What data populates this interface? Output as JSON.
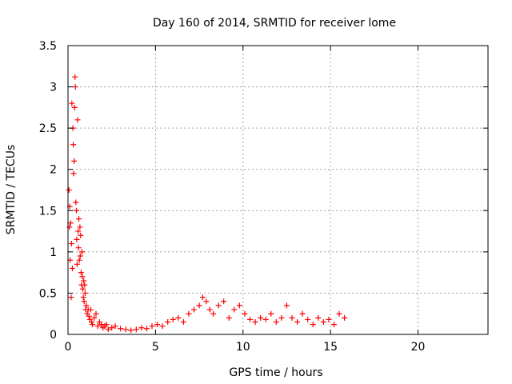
{
  "chart_data": {
    "type": "scatter",
    "title": "Day 160 of 2014, SRMTID for receiver lome",
    "xlabel": "GPS time / hours",
    "ylabel": "SRMTID / TECUs",
    "xlim": [
      0,
      24
    ],
    "ylim": [
      0,
      3.5
    ],
    "x_ticks": [
      "0",
      "5",
      "10",
      "15",
      "20"
    ],
    "y_ticks": [
      "0",
      "0.5",
      "1",
      "1.5",
      "2",
      "2.5",
      "3",
      "3.5"
    ],
    "grid": true,
    "marker": "+",
    "color": "#ff0000",
    "series": [
      {
        "x": [
          0.05,
          0.08,
          0.1,
          0.12,
          0.15,
          0.18,
          0.2,
          0.22,
          0.25,
          0.28,
          0.3,
          0.32,
          0.35,
          0.38,
          0.4,
          0.42,
          0.45,
          0.48,
          0.5,
          0.52,
          0.55,
          0.58,
          0.6,
          0.62,
          0.65,
          0.68,
          0.7,
          0.72,
          0.75,
          0.78,
          0.8,
          0.82,
          0.85,
          0.88,
          0.9,
          0.92,
          0.95,
          0.98,
          1.0,
          1.05,
          1.1,
          1.15,
          1.2,
          1.25,
          1.3,
          1.35,
          1.4,
          1.5,
          1.6,
          1.7,
          1.8,
          1.9,
          2.0,
          2.1,
          2.2,
          2.3,
          2.5,
          2.7,
          3.0,
          3.3,
          3.6,
          3.9,
          4.2,
          4.5,
          4.8,
          5.1,
          5.4,
          5.7,
          6.0,
          6.3,
          6.6,
          6.9,
          7.2,
          7.5,
          7.7,
          7.9,
          8.1,
          8.3,
          8.6,
          8.9,
          9.2,
          9.5,
          9.8,
          10.1,
          10.4,
          10.7,
          11.0,
          11.3,
          11.6,
          11.9,
          12.2,
          12.5,
          12.8,
          13.1,
          13.4,
          13.7,
          14.0,
          14.3,
          14.6,
          14.9,
          15.2,
          15.5,
          15.8
        ],
        "y": [
          1.75,
          1.3,
          1.55,
          0.9,
          1.35,
          0.45,
          1.1,
          2.8,
          0.8,
          2.5,
          2.3,
          1.95,
          2.1,
          2.75,
          3.12,
          3.0,
          1.6,
          1.5,
          1.15,
          0.85,
          2.6,
          1.25,
          1.05,
          1.4,
          0.9,
          1.3,
          0.95,
          1.2,
          0.75,
          0.6,
          1.0,
          0.7,
          0.55,
          0.45,
          0.65,
          0.4,
          0.6,
          0.5,
          0.3,
          0.35,
          0.25,
          0.3,
          0.22,
          0.18,
          0.3,
          0.15,
          0.12,
          0.2,
          0.25,
          0.1,
          0.15,
          0.12,
          0.08,
          0.1,
          0.12,
          0.06,
          0.08,
          0.1,
          0.07,
          0.06,
          0.05,
          0.06,
          0.08,
          0.07,
          0.1,
          0.12,
          0.1,
          0.15,
          0.18,
          0.2,
          0.15,
          0.25,
          0.3,
          0.35,
          0.45,
          0.4,
          0.3,
          0.25,
          0.35,
          0.4,
          0.2,
          0.3,
          0.35,
          0.25,
          0.18,
          0.15,
          0.2,
          0.18,
          0.25,
          0.15,
          0.2,
          0.35,
          0.2,
          0.15,
          0.25,
          0.18,
          0.12,
          0.2,
          0.15,
          0.18,
          0.12,
          0.25,
          0.2
        ]
      }
    ]
  }
}
